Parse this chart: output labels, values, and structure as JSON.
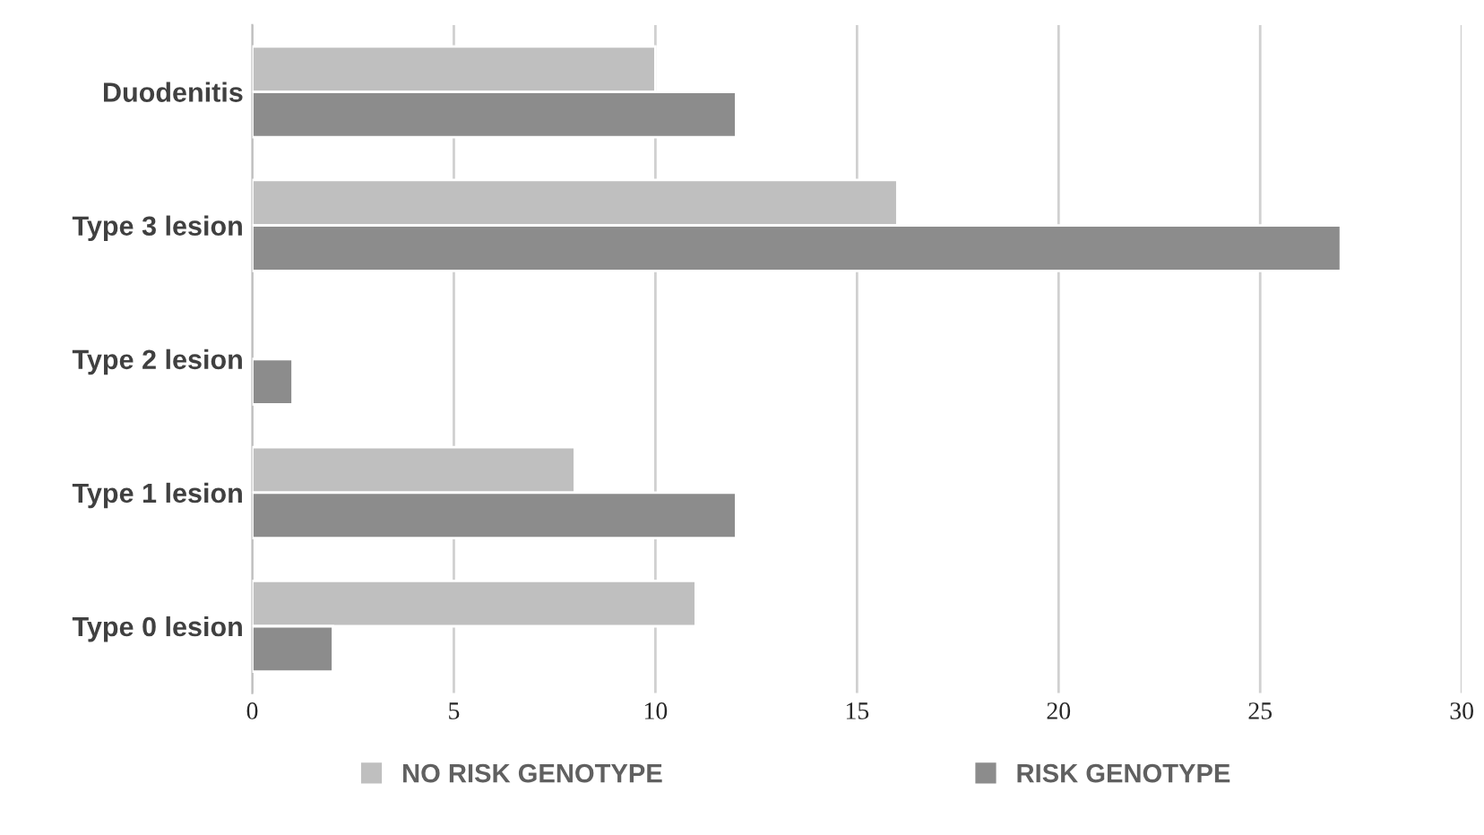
{
  "chart_data": {
    "type": "bar",
    "orientation": "horizontal",
    "categories": [
      "Duodenitis",
      "Type 3 lesion",
      "Type 2 lesion",
      "Type 1 lesion",
      "Type 0 lesion"
    ],
    "series": [
      {
        "name": "NO RISK GENOTYPE",
        "color": "#bfbfbf",
        "values": [
          10,
          16,
          null,
          8,
          11
        ]
      },
      {
        "name": "RISK GENOTYPE",
        "color": "#8c8c8c",
        "values": [
          12,
          27,
          1,
          12,
          2
        ]
      }
    ],
    "xlim": [
      0,
      30
    ],
    "xticks": [
      0,
      5,
      10,
      15,
      20,
      25,
      30
    ],
    "grid": "x",
    "legend": "bottom"
  }
}
